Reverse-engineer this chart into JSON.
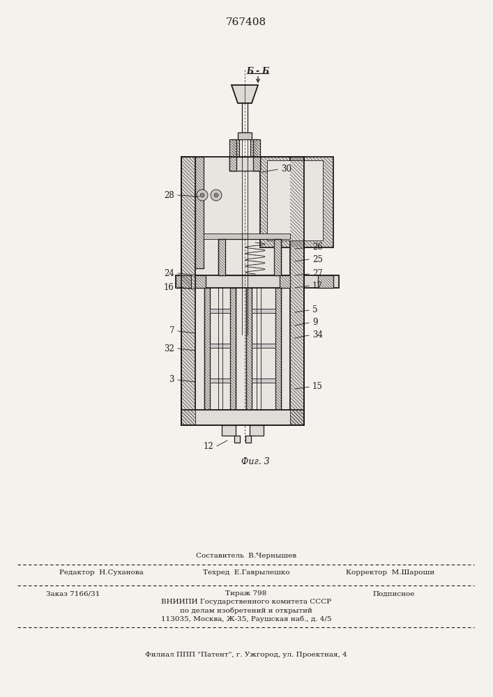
{
  "patent_number": "767408",
  "figure_label": "Фиг. 3",
  "section_label": "Б - Б",
  "bg_color": "#f5f2ed",
  "line_color": "#1a1a1a",
  "footer": {
    "editor_label": "Редактор  Н.Суханова",
    "compiler_label": "Составитель  В.Чернышев",
    "techred_label": "Техред  Е.Гаврылешко",
    "corrector_label": "Корректор  М.Шароши",
    "order_label": "Заказ 7166/31",
    "tirazh_label": "Тираж 798",
    "podpisnoe_label": "Подписное",
    "vniip1": "ВНИИПИ Государственного комитета СССР",
    "vniip2": "по делам изобретений и открытий",
    "vniip3": "113035, Москва, Ж-35, Раушская наб., д. 4/5",
    "filial": "Филиал ППП \"Патент\", г. Ужгород, ул. Проектная, 4"
  }
}
